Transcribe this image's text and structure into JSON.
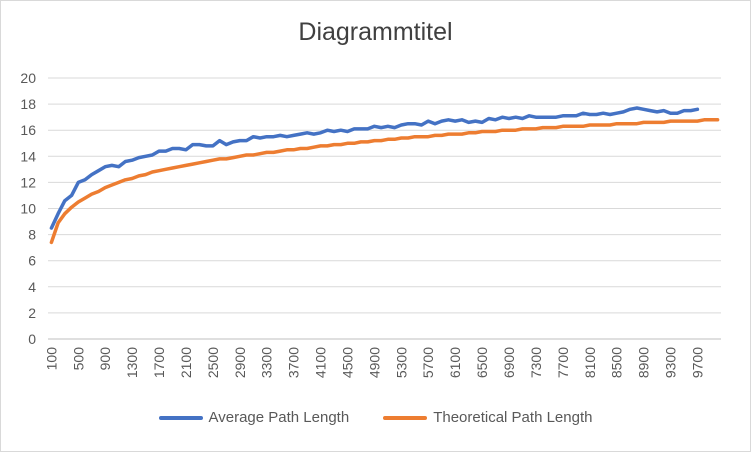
{
  "chart_data": {
    "type": "line",
    "title": "Diagrammtitel",
    "xlabel": "",
    "ylabel": "",
    "ylim": [
      0,
      20
    ],
    "yticks": [
      "0",
      "2",
      "4",
      "6",
      "8",
      "10",
      "12",
      "14",
      "16",
      "18",
      "20"
    ],
    "x": [
      100,
      200,
      300,
      400,
      500,
      600,
      700,
      800,
      900,
      1000,
      1100,
      1200,
      1300,
      1400,
      1500,
      1600,
      1700,
      1800,
      1900,
      2000,
      2100,
      2200,
      2300,
      2400,
      2500,
      2600,
      2700,
      2800,
      2900,
      3000,
      3100,
      3200,
      3300,
      3400,
      3500,
      3600,
      3700,
      3800,
      3900,
      4000,
      4100,
      4200,
      4300,
      4400,
      4500,
      4600,
      4700,
      4800,
      4900,
      5000,
      5100,
      5200,
      5300,
      5400,
      5500,
      5600,
      5700,
      5800,
      5900,
      6000,
      6100,
      6200,
      6300,
      6400,
      6500,
      6600,
      6700,
      6800,
      6900,
      7000,
      7100,
      7200,
      7300,
      7400,
      7500,
      7600,
      7700,
      7800,
      7900,
      8000,
      8100,
      8200,
      8300,
      8400,
      8500,
      8600,
      8700,
      8800,
      8900,
      9000,
      9100,
      9200,
      9300,
      9400,
      9500,
      9600,
      9700,
      9800,
      9900,
      10000
    ],
    "xticks": [
      "100",
      "500",
      "900",
      "1300",
      "1700",
      "2100",
      "2500",
      "2900",
      "3300",
      "3700",
      "4100",
      "4500",
      "4900",
      "5300",
      "5700",
      "6100",
      "6500",
      "6900",
      "7300",
      "7700",
      "8100",
      "8500",
      "8900",
      "9300",
      "9700"
    ],
    "grid": true,
    "legend_position": "bottom",
    "series": [
      {
        "name": "Average Path Length",
        "color": "#4472C4",
        "values": [
          8.5,
          9.6,
          10.6,
          11.0,
          12.0,
          12.2,
          12.6,
          12.9,
          13.2,
          13.3,
          13.2,
          13.6,
          13.7,
          13.9,
          14.0,
          14.1,
          14.4,
          14.4,
          14.6,
          14.6,
          14.5,
          14.9,
          14.9,
          14.8,
          14.8,
          15.2,
          14.9,
          15.1,
          15.2,
          15.2,
          15.5,
          15.4,
          15.5,
          15.5,
          15.6,
          15.5,
          15.6,
          15.7,
          15.8,
          15.7,
          15.8,
          16.0,
          15.9,
          16.0,
          15.9,
          16.1,
          16.1,
          16.1,
          16.3,
          16.2,
          16.3,
          16.2,
          16.4,
          16.5,
          16.5,
          16.4,
          16.7,
          16.5,
          16.7,
          16.8,
          16.7,
          16.8,
          16.6,
          16.7,
          16.6,
          16.9,
          16.8,
          17.0,
          16.9,
          17.0,
          16.9,
          17.1,
          17.0,
          17.0,
          17.0,
          17.0,
          17.1,
          17.1,
          17.1,
          17.3,
          17.2,
          17.2,
          17.3,
          17.2,
          17.3,
          17.4,
          17.6,
          17.7,
          17.6,
          17.5,
          17.4,
          17.5,
          17.3,
          17.3,
          17.5,
          17.5,
          17.6,
          null,
          null,
          null
        ]
      },
      {
        "name": "Theoretical Path Length",
        "color": "#ED7D31",
        "values": [
          7.4,
          8.9,
          9.6,
          10.1,
          10.5,
          10.8,
          11.1,
          11.3,
          11.6,
          11.8,
          12.0,
          12.2,
          12.3,
          12.5,
          12.6,
          12.8,
          12.9,
          13.0,
          13.1,
          13.2,
          13.3,
          13.4,
          13.5,
          13.6,
          13.7,
          13.8,
          13.8,
          13.9,
          14.0,
          14.1,
          14.1,
          14.2,
          14.3,
          14.3,
          14.4,
          14.5,
          14.5,
          14.6,
          14.6,
          14.7,
          14.8,
          14.8,
          14.9,
          14.9,
          15.0,
          15.0,
          15.1,
          15.1,
          15.2,
          15.2,
          15.3,
          15.3,
          15.4,
          15.4,
          15.5,
          15.5,
          15.5,
          15.6,
          15.6,
          15.7,
          15.7,
          15.7,
          15.8,
          15.8,
          15.9,
          15.9,
          15.9,
          16.0,
          16.0,
          16.0,
          16.1,
          16.1,
          16.1,
          16.2,
          16.2,
          16.2,
          16.3,
          16.3,
          16.3,
          16.3,
          16.4,
          16.4,
          16.4,
          16.4,
          16.5,
          16.5,
          16.5,
          16.5,
          16.6,
          16.6,
          16.6,
          16.6,
          16.7,
          16.7,
          16.7,
          16.7,
          16.7,
          16.8,
          16.8,
          16.8
        ]
      }
    ]
  }
}
